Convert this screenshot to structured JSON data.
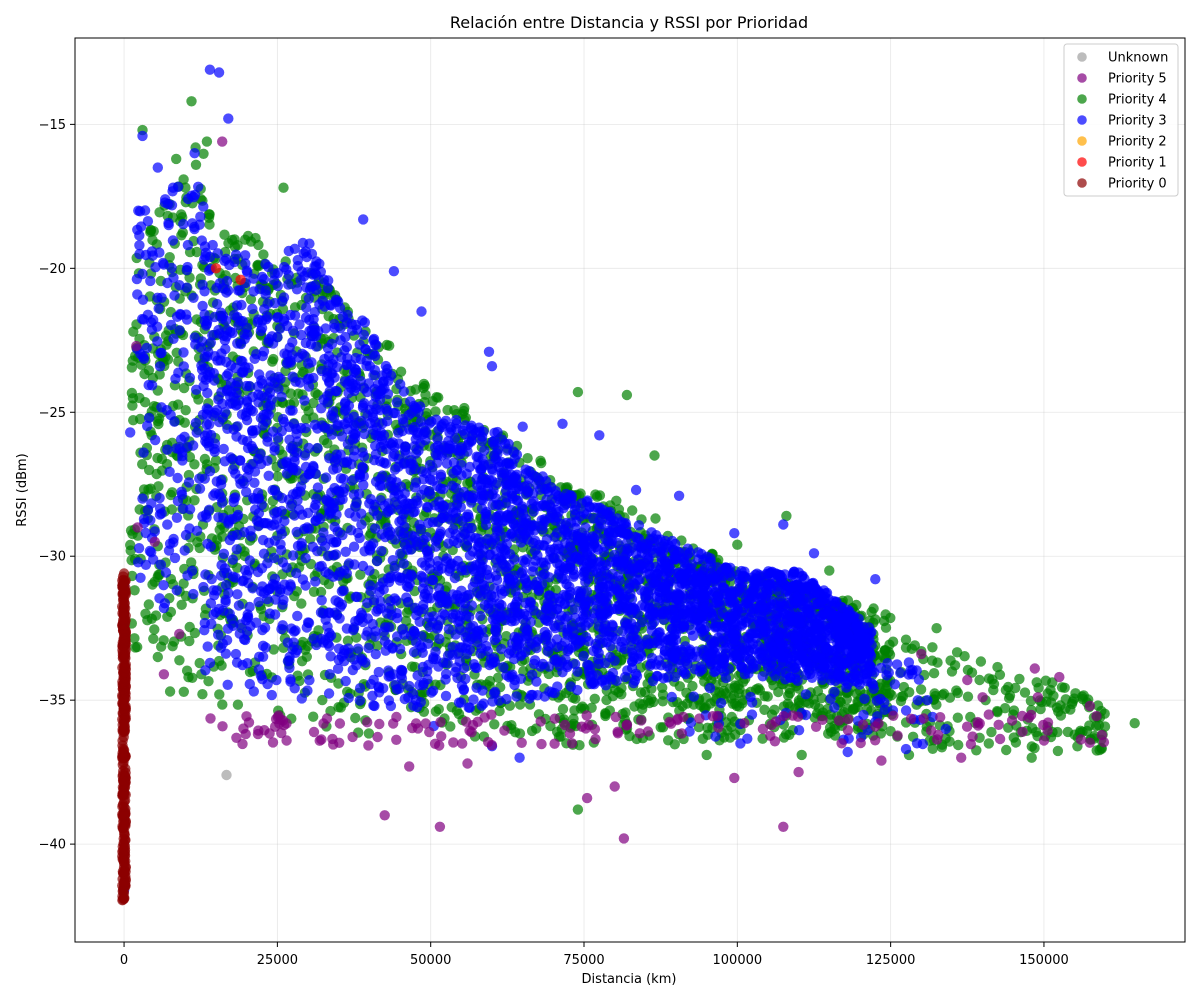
{
  "chart_data": {
    "type": "scatter",
    "title": "Relación entre Distancia y RSSI por Prioridad",
    "xlabel": "Distancia (km)",
    "ylabel": "RSSI (dBm)",
    "xlim": [
      -8000,
      173000
    ],
    "ylim": [
      -43.4,
      -12.0
    ],
    "xticks": [
      0,
      25000,
      50000,
      75000,
      100000,
      125000,
      150000
    ],
    "yticks": [
      -40,
      -35,
      -30,
      -25,
      -20,
      -15
    ],
    "grid": true,
    "legend_position": "top-right",
    "series": [
      {
        "name": "Unknown",
        "color": "#a0a0a0",
        "points": [
          [
            16700,
            -37.6
          ]
        ]
      },
      {
        "name": "Priority 5",
        "color": "#800080",
        "points": [
          [
            16000,
            -15.6
          ],
          [
            2000,
            -22.7
          ],
          [
            2200,
            -29.0
          ],
          [
            5000,
            -29.5
          ],
          [
            9000,
            -32.7
          ],
          [
            26500,
            -36.4
          ],
          [
            42500,
            -39.0
          ],
          [
            46500,
            -37.3
          ],
          [
            51500,
            -39.4
          ],
          [
            56000,
            -37.2
          ],
          [
            75500,
            -38.4
          ],
          [
            80000,
            -38.0
          ],
          [
            81500,
            -39.8
          ],
          [
            99500,
            -37.7
          ],
          [
            107500,
            -39.4
          ],
          [
            110000,
            -37.5
          ],
          [
            136500,
            -37.0
          ],
          [
            148500,
            -33.9
          ],
          [
            152500,
            -34.2
          ],
          [
            157500,
            -35.2
          ],
          [
            149000,
            -34.9
          ],
          [
            141000,
            -35.5
          ],
          [
            146500,
            -36.1
          ],
          [
            150000,
            -36.4
          ],
          [
            130000,
            -33.4
          ],
          [
            6500,
            -34.1
          ],
          [
            137500,
            -34.3
          ],
          [
            140000,
            -34.9
          ],
          [
            123500,
            -37.1
          ],
          [
            80500,
            -36.1
          ]
        ]
      },
      {
        "name": "Priority 4",
        "color": "#008000",
        "points": [
          [
            11000,
            -14.2
          ],
          [
            3000,
            -15.2
          ],
          [
            8500,
            -16.2
          ],
          [
            13500,
            -15.6
          ],
          [
            26000,
            -17.2
          ],
          [
            1500,
            -22.2
          ],
          [
            2500,
            -24.5
          ],
          [
            4500,
            -25.8
          ],
          [
            1800,
            -30.1
          ],
          [
            3500,
            -32.0
          ],
          [
            5500,
            -33.5
          ],
          [
            7500,
            -34.7
          ],
          [
            74000,
            -24.3
          ],
          [
            82000,
            -24.4
          ],
          [
            86500,
            -26.5
          ],
          [
            74000,
            -38.8
          ],
          [
            164800,
            -35.8
          ],
          [
            158500,
            -35.9
          ],
          [
            153500,
            -35.3
          ],
          [
            155000,
            -36.2
          ],
          [
            148000,
            -37.0
          ],
          [
            141000,
            -36.5
          ],
          [
            128000,
            -36.9
          ],
          [
            110500,
            -36.9
          ],
          [
            95000,
            -36.9
          ],
          [
            132500,
            -32.5
          ],
          [
            130000,
            -33.3
          ],
          [
            135000,
            -34.0
          ],
          [
            145000,
            -35.5
          ],
          [
            139500,
            -34.3
          ],
          [
            120000,
            -32.1
          ],
          [
            127500,
            -32.9
          ],
          [
            115000,
            -30.5
          ],
          [
            108000,
            -28.6
          ],
          [
            100000,
            -29.6
          ]
        ]
      },
      {
        "name": "Priority 3",
        "color": "#0000ff",
        "points": [
          [
            14000,
            -13.1
          ],
          [
            15500,
            -13.2
          ],
          [
            17000,
            -14.8
          ],
          [
            3000,
            -15.4
          ],
          [
            11500,
            -16.0
          ],
          [
            5500,
            -16.5
          ],
          [
            8000,
            -17.2
          ],
          [
            2500,
            -19.2
          ],
          [
            1000,
            -25.7
          ],
          [
            3000,
            -28.0
          ],
          [
            39000,
            -18.3
          ],
          [
            44000,
            -20.1
          ],
          [
            48500,
            -21.5
          ],
          [
            59500,
            -22.9
          ],
          [
            60000,
            -23.4
          ],
          [
            65000,
            -25.5
          ],
          [
            71500,
            -25.4
          ],
          [
            77500,
            -25.8
          ],
          [
            83500,
            -27.7
          ],
          [
            90500,
            -27.9
          ],
          [
            99500,
            -29.2
          ],
          [
            107500,
            -28.9
          ],
          [
            112500,
            -29.9
          ],
          [
            122500,
            -30.8
          ],
          [
            128500,
            -34.1
          ],
          [
            131000,
            -35.0
          ],
          [
            134000,
            -36.0
          ],
          [
            127500,
            -36.7
          ],
          [
            118000,
            -36.8
          ],
          [
            100500,
            -36.5
          ],
          [
            64500,
            -37.0
          ],
          [
            60000,
            -36.6
          ],
          [
            50500,
            -35.9
          ],
          [
            0,
            -31.0
          ],
          [
            0,
            -41.6
          ],
          [
            20000,
            -25.0
          ],
          [
            30000,
            -28.5
          ],
          [
            40000,
            -30.5
          ],
          [
            55000,
            -31.2
          ],
          [
            70000,
            -32.0
          ]
        ]
      },
      {
        "name": "Priority 2",
        "color": "#ffa500",
        "points": []
      },
      {
        "name": "Priority 1",
        "color": "#ff0000",
        "points": [
          [
            15000,
            -20.0
          ],
          [
            19000,
            -20.4
          ]
        ]
      },
      {
        "name": "Priority 0",
        "color": "#8b0000",
        "points": [
          [
            0,
            -30.6
          ],
          [
            0,
            -31.2
          ],
          [
            0,
            -32.0
          ],
          [
            0,
            -33.0
          ],
          [
            0,
            -34.0
          ],
          [
            0,
            -35.0
          ],
          [
            0,
            -36.0
          ],
          [
            0,
            -37.0
          ],
          [
            0,
            -38.0
          ],
          [
            0,
            -39.0
          ],
          [
            0,
            -40.0
          ],
          [
            0,
            -41.0
          ],
          [
            0,
            -41.9
          ]
        ]
      }
    ],
    "clouds": [
      {
        "series": "Priority 4",
        "color": "#008000",
        "count": 2200,
        "seed": 7,
        "xrange": [
          13000,
          125000
        ],
        "top": [
          [
            13000,
            -18
          ],
          [
            22000,
            -19
          ],
          [
            30000,
            -20
          ],
          [
            40000,
            -22
          ],
          [
            50000,
            -24
          ],
          [
            60000,
            -25.5
          ],
          [
            70000,
            -27
          ],
          [
            80000,
            -28
          ],
          [
            90000,
            -29
          ],
          [
            100000,
            -30.5
          ],
          [
            110000,
            -31
          ],
          [
            125000,
            -32
          ]
        ],
        "bottom": [
          [
            13000,
            -35.5
          ],
          [
            40000,
            -36.2
          ],
          [
            70000,
            -36.6
          ],
          [
            100000,
            -36.6
          ],
          [
            125000,
            -36.2
          ]
        ]
      },
      {
        "series": "Priority 4",
        "color": "#008000",
        "count": 240,
        "seed": 11,
        "xrange": [
          1000,
          13000
        ],
        "top": [
          [
            1000,
            -20
          ],
          [
            13000,
            -15
          ]
        ],
        "bottom": [
          [
            1000,
            -33
          ],
          [
            13000,
            -36
          ]
        ]
      },
      {
        "series": "Priority 4",
        "color": "#008000",
        "count": 160,
        "seed": 13,
        "xrange": [
          125000,
          160000
        ],
        "top": [
          [
            125000,
            -32.5
          ],
          [
            160000,
            -35
          ]
        ],
        "bottom": [
          [
            125000,
            -36.8
          ],
          [
            160000,
            -36.8
          ]
        ]
      },
      {
        "series": "Priority 3",
        "color": "#0000ff",
        "count": 3400,
        "seed": 3,
        "xrange": [
          13000,
          122000
        ],
        "top": [
          [
            13000,
            -19
          ],
          [
            20000,
            -19.5
          ],
          [
            25000,
            -19.5
          ],
          [
            30000,
            -19
          ],
          [
            35000,
            -21
          ],
          [
            40000,
            -22
          ],
          [
            45000,
            -24
          ],
          [
            50000,
            -25
          ],
          [
            60000,
            -25.5
          ],
          [
            70000,
            -27.5
          ],
          [
            80000,
            -28.5
          ],
          [
            90000,
            -29.5
          ],
          [
            100000,
            -30.5
          ],
          [
            110000,
            -30.5
          ],
          [
            122000,
            -32.5
          ]
        ],
        "bottom": [
          [
            13000,
            -34.5
          ],
          [
            40000,
            -35.3
          ],
          [
            60000,
            -35.3
          ],
          [
            80000,
            -34.5
          ],
          [
            100000,
            -34.2
          ],
          [
            122000,
            -34.5
          ]
        ]
      },
      {
        "series": "Priority 3",
        "color": "#0000ff",
        "count": 170,
        "seed": 17,
        "xrange": [
          2000,
          13000
        ],
        "top": [
          [
            2000,
            -18
          ],
          [
            13000,
            -16
          ]
        ],
        "bottom": [
          [
            2000,
            -31
          ],
          [
            13000,
            -33
          ]
        ]
      },
      {
        "series": "Priority 3",
        "color": "#0000ff",
        "count": 120,
        "seed": 19,
        "xrange": [
          85000,
          132000
        ],
        "top": [
          [
            85000,
            -30
          ],
          [
            132000,
            -34
          ]
        ],
        "bottom": [
          [
            85000,
            -36.2
          ],
          [
            132000,
            -36.6
          ]
        ]
      },
      {
        "series": "Priority 5",
        "color": "#800080",
        "count": 140,
        "seed": 23,
        "xrange": [
          14000,
          160000
        ],
        "top": [
          [
            14000,
            -35.5
          ],
          [
            160000,
            -35.5
          ]
        ],
        "bottom": [
          [
            14000,
            -36.6
          ],
          [
            160000,
            -36.6
          ]
        ]
      },
      {
        "series": "Priority 0",
        "color": "#8b0000",
        "count": 320,
        "seed": 29,
        "xrange": [
          -300,
          300
        ],
        "top": [
          [
            -300,
            -30.7
          ],
          [
            300,
            -30.7
          ]
        ],
        "bottom": [
          [
            -300,
            -42.0
          ],
          [
            300,
            -42.0
          ]
        ]
      }
    ]
  }
}
